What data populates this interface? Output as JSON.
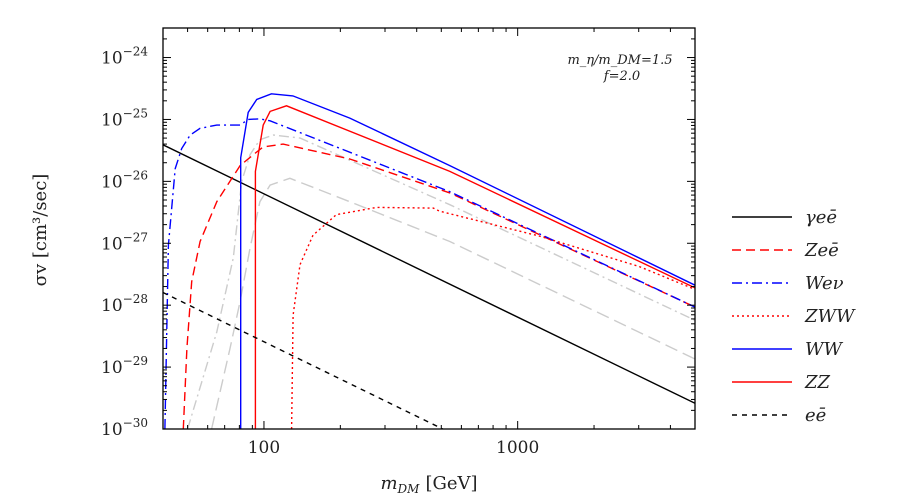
{
  "chart_data": {
    "type": "line",
    "title": "",
    "xlabel": "m_DM [GeV]",
    "xlabel_main": "m",
    "xlabel_sub": "DM",
    "xlabel_unit": "[GeV]",
    "ylabel": "σv [cm³/sec]",
    "x_scale": "log",
    "y_scale": "log",
    "xlim": [
      40,
      5000
    ],
    "ylim": [
      1e-30,
      3e-24
    ],
    "grid": false,
    "legend_placement": "right, outside",
    "x_tick_labels": [
      {
        "value": 100,
        "label": "100"
      },
      {
        "value": 1000,
        "label": "1000"
      }
    ],
    "y_tick_labels": [
      {
        "value": 1e-24,
        "base": "10",
        "exp": "−24"
      },
      {
        "value": 1e-25,
        "base": "10",
        "exp": "−25"
      },
      {
        "value": 1e-26,
        "base": "10",
        "exp": "−26"
      },
      {
        "value": 1e-27,
        "base": "10",
        "exp": "−27"
      },
      {
        "value": 1e-28,
        "base": "10",
        "exp": "−28"
      },
      {
        "value": 1e-29,
        "base": "10",
        "exp": "−29"
      },
      {
        "value": 1e-30,
        "base": "10",
        "exp": "−30"
      }
    ],
    "annotations": [
      "m_η/m_DM=1.5",
      "f=2.0"
    ],
    "series": [
      {
        "name": "γeē",
        "color": "#000000",
        "style": "solid",
        "points": [
          [
            40,
            3.9e-26
          ],
          [
            5000,
            2.6e-30
          ]
        ]
      },
      {
        "name": "Zeē",
        "color": "#ff0000",
        "style": "dashed",
        "points": [
          [
            48.1,
            1e-30
          ],
          [
            49.7,
            2e-29
          ],
          [
            51.9,
            2.4e-28
          ],
          [
            56,
            1.07e-27
          ],
          [
            65.2,
            4.7e-27
          ],
          [
            80.5,
            1.8e-26
          ],
          [
            90.8,
            2.7e-26
          ],
          [
            99.3,
            3.6e-26
          ],
          [
            119,
            4e-26
          ],
          [
            218,
            2.3e-26
          ],
          [
            540,
            6.5e-27
          ],
          [
            5000,
            9.3e-29
          ]
        ]
      },
      {
        "name": "Weν",
        "color": "#0000ff",
        "style": "dashdot",
        "points": [
          [
            40.7,
            1e-30
          ],
          [
            42,
            9.3e-28
          ],
          [
            44.7,
            1.6e-26
          ],
          [
            47.4,
            3.4e-26
          ],
          [
            51.2,
            5.6e-26
          ],
          [
            56,
            7.2e-26
          ],
          [
            65.2,
            8.1e-26
          ],
          [
            80.5,
            8.1e-26
          ],
          [
            86.7,
            1e-25
          ],
          [
            96.4,
            1.02e-25
          ],
          [
            105.7,
            9.5e-26
          ],
          [
            540,
            6.8e-27
          ],
          [
            5000,
            9.3e-29
          ]
        ]
      },
      {
        "name": "ZWW",
        "color": "#ff0000",
        "style": "dotted",
        "points": [
          [
            128.5,
            1e-30
          ],
          [
            130.3,
            6.9e-29
          ],
          [
            138.7,
            4.5e-28
          ],
          [
            156,
            1.35e-27
          ],
          [
            193,
            2.9e-27
          ],
          [
            278,
            3.8e-27
          ],
          [
            465,
            3.7e-27
          ],
          [
            493,
            3.3e-27
          ],
          [
            1222,
            1.3e-27
          ],
          [
            3020,
            4.2e-28
          ],
          [
            5000,
            1.8e-28
          ]
        ]
      },
      {
        "name": "WW",
        "color": "#0000ff",
        "style": "solid",
        "points": [
          [
            81,
            1e-30
          ],
          [
            81,
            2.4e-26
          ],
          [
            86.7,
            1.3e-25
          ],
          [
            93.6,
            2.1e-25
          ],
          [
            107,
            2.6e-25
          ],
          [
            130,
            2.4e-25
          ],
          [
            218,
            1.05e-25
          ],
          [
            540,
            1.8e-26
          ],
          [
            5000,
            2.1e-28
          ]
        ]
      },
      {
        "name": "ZZ",
        "color": "#ff0000",
        "style": "solid",
        "points": [
          [
            92.5,
            1e-30
          ],
          [
            92.5,
            1.45e-26
          ],
          [
            99.3,
            8.1e-26
          ],
          [
            105.7,
            1.35e-25
          ],
          [
            122.7,
            1.66e-25
          ],
          [
            540,
            1.45e-26
          ],
          [
            5000,
            1.9e-28
          ]
        ]
      },
      {
        "name": "eē",
        "color": "#000000",
        "style": "dashed-short",
        "points": [
          [
            40,
            1.6e-28
          ],
          [
            520,
            9.5e-31
          ]
        ]
      },
      {
        "color": "#cccccc",
        "style": "dashdot",
        "points": [
          [
            50,
            1e-30
          ],
          [
            65.2,
            3.7e-29
          ],
          [
            75.7,
            5.8e-28
          ],
          [
            81.7,
            1e-26
          ],
          [
            88.1,
            2.7e-26
          ],
          [
            96.4,
            4.7e-26
          ],
          [
            109,
            5.6e-26
          ],
          [
            139,
            5e-26
          ],
          [
            540,
            4.2e-27
          ],
          [
            5000,
            5.7e-29
          ]
        ]
      },
      {
        "color": "#cccccc",
        "style": "dashed-long",
        "points": [
          [
            62.2,
            1e-30
          ],
          [
            73.5,
            2e-29
          ],
          [
            80.5,
            1.15e-28
          ],
          [
            88.1,
            8.3e-28
          ],
          [
            96.4,
            4.7e-27
          ],
          [
            105.7,
            8.7e-27
          ],
          [
            126.5,
            1.12e-26
          ],
          [
            218,
            4.7e-27
          ],
          [
            540,
            1.07e-27
          ],
          [
            5000,
            1.35e-29
          ]
        ]
      }
    ]
  }
}
